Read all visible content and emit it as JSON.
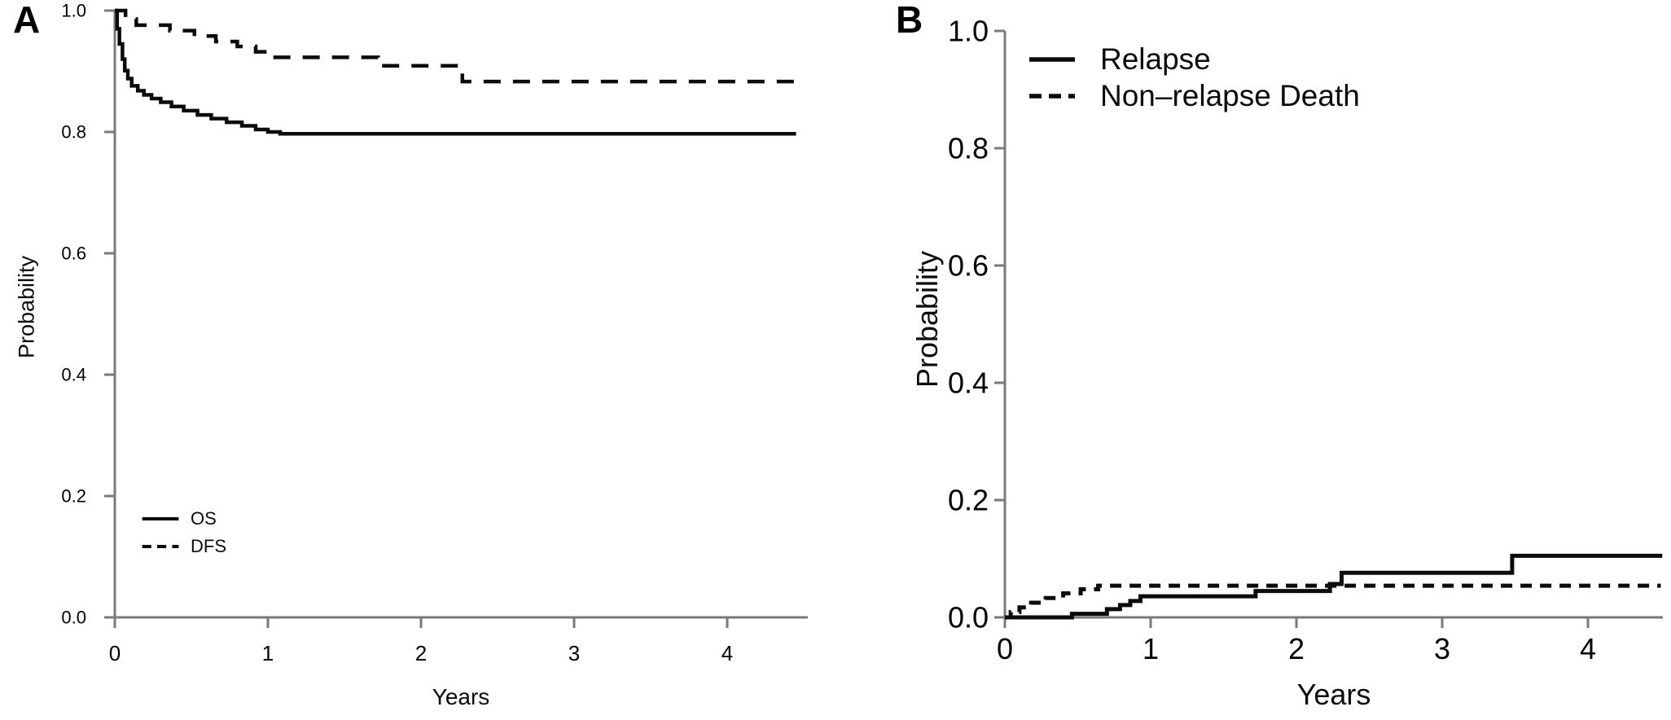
{
  "figure": {
    "panels": [
      {
        "letter": "A"
      },
      {
        "letter": "B"
      }
    ]
  },
  "colors": {
    "curve": "#0b0b0b",
    "axis": "#7a7a7a",
    "text": "#000000",
    "background": "#ffffff"
  },
  "chart_data": [
    {
      "type": "line",
      "subtype": "step-survival",
      "panel": "A",
      "title": "",
      "xlabel": "Years",
      "ylabel": "Probability",
      "xlim": [
        0,
        4.55
      ],
      "ylim": [
        0.0,
        1.0
      ],
      "x_ticks": [
        0,
        1,
        2,
        3,
        4
      ],
      "x_tick_labels": [
        "0",
        "1",
        "2",
        "3",
        "4"
      ],
      "y_ticks": [
        1.0,
        0.8,
        0.6,
        0.4,
        0.2,
        0.0
      ],
      "y_tick_labels": [
        "1.0",
        "0.8",
        "0.6",
        "0.4",
        "0.2",
        "0.0"
      ],
      "grid": false,
      "legend_position": "lower-left",
      "series": [
        {
          "name": "OS",
          "line_style": "solid",
          "start_value": 1.0,
          "end_x": 4.45,
          "steps": [
            [
              0.015,
              0.97
            ],
            [
              0.03,
              0.945
            ],
            [
              0.05,
              0.92
            ],
            [
              0.065,
              0.901
            ],
            [
              0.085,
              0.888
            ],
            [
              0.11,
              0.876
            ],
            [
              0.15,
              0.868
            ],
            [
              0.19,
              0.861
            ],
            [
              0.24,
              0.855
            ],
            [
              0.3,
              0.849
            ],
            [
              0.37,
              0.842
            ],
            [
              0.45,
              0.835
            ],
            [
              0.54,
              0.828
            ],
            [
              0.63,
              0.822
            ],
            [
              0.73,
              0.816
            ],
            [
              0.83,
              0.81
            ],
            [
              0.92,
              0.804
            ],
            [
              1.0,
              0.8
            ],
            [
              1.08,
              0.797
            ]
          ]
        },
        {
          "name": "DFS",
          "line_style": "dashed",
          "start_value": 1.0,
          "end_x": 4.44,
          "steps": [
            [
              0.07,
              0.986
            ],
            [
              0.14,
              0.976
            ],
            [
              0.36,
              0.967
            ],
            [
              0.52,
              0.958
            ],
            [
              0.66,
              0.949
            ],
            [
              0.8,
              0.941
            ],
            [
              0.92,
              0.932
            ],
            [
              1.03,
              0.923
            ],
            [
              1.72,
              0.909
            ],
            [
              2.27,
              0.883
            ]
          ]
        }
      ]
    },
    {
      "type": "line",
      "subtype": "step-cumulative-incidence",
      "panel": "B",
      "title": "",
      "xlabel": "Years",
      "ylabel": "Probability",
      "xlim": [
        0,
        4.51
      ],
      "ylim": [
        0.0,
        1.0
      ],
      "x_ticks": [
        0,
        1,
        2,
        3,
        4
      ],
      "x_tick_labels": [
        "0",
        "1",
        "2",
        "3",
        "4"
      ],
      "y_ticks": [
        1.0,
        0.8,
        0.6,
        0.4,
        0.2,
        0.0
      ],
      "y_tick_labels": [
        "1.0",
        "0.8",
        "0.6",
        "0.4",
        "0.2",
        "0.0"
      ],
      "grid": false,
      "legend_position": "upper-left",
      "series": [
        {
          "name": "Relapse",
          "line_style": "solid",
          "start_value": 0.0,
          "end_x": 4.51,
          "steps": [
            [
              0.46,
              0.006
            ],
            [
              0.7,
              0.014
            ],
            [
              0.79,
              0.021
            ],
            [
              0.86,
              0.028
            ],
            [
              0.93,
              0.036
            ],
            [
              1.72,
              0.045
            ],
            [
              2.23,
              0.057
            ],
            [
              2.31,
              0.076
            ],
            [
              3.48,
              0.105
            ]
          ]
        },
        {
          "name": "Non–relapse Death",
          "line_style": "dashed",
          "start_value": 0.0,
          "end_x": 4.5,
          "steps": [
            [
              0.04,
              0.009
            ],
            [
              0.1,
              0.017
            ],
            [
              0.18,
              0.025
            ],
            [
              0.28,
              0.033
            ],
            [
              0.4,
              0.041
            ],
            [
              0.52,
              0.048
            ],
            [
              0.64,
              0.054
            ]
          ]
        }
      ]
    }
  ]
}
